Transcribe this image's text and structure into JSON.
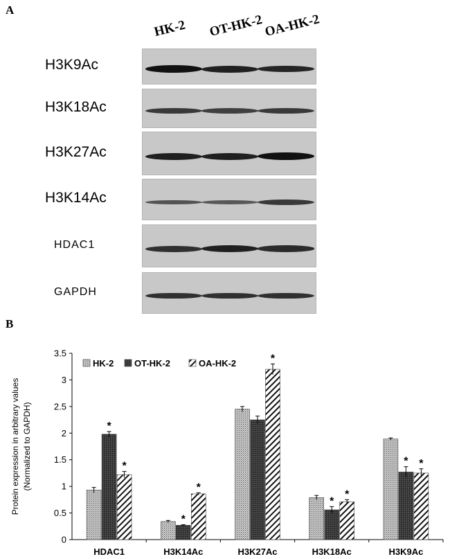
{
  "panel_a": {
    "letter": "A",
    "lanes": [
      "HK-2",
      "OT-HK-2",
      "OA-HK-2"
    ],
    "blots": [
      {
        "label": "H3K9Ac",
        "bands": [
          1.0,
          0.85,
          0.8
        ]
      },
      {
        "label": "H3K18Ac",
        "bands": [
          0.6,
          0.55,
          0.6
        ]
      },
      {
        "label": "H3K27Ac",
        "bands": [
          0.85,
          0.85,
          1.0
        ]
      },
      {
        "label": "H3K14Ac",
        "bands": [
          0.35,
          0.3,
          0.6
        ]
      },
      {
        "label": "HDAC1",
        "bands": [
          0.7,
          0.85,
          0.75
        ]
      },
      {
        "label": "GAPDH",
        "bands": [
          0.7,
          0.7,
          0.7
        ]
      }
    ]
  },
  "panel_b": {
    "letter": "B"
  },
  "chart_data": {
    "type": "bar",
    "title": "",
    "xlabel": "",
    "ylabel": "Protein expression in arbitrary values (Normalized to GAPDH)",
    "ylabel_lines": [
      "Protein expression in arbitrary values",
      "(Normalized to GAPDH)"
    ],
    "ylim": [
      0,
      3.5
    ],
    "yticks": [
      "0",
      "0.5",
      "1",
      "1.5",
      "2",
      "2.5",
      "3",
      "3.5"
    ],
    "legend_position": "top-left",
    "categories": [
      "HDAC1",
      "H3K14Ac",
      "H3K27Ac",
      "H3K18Ac",
      "H3K9Ac"
    ],
    "series": [
      {
        "name": "HK-2",
        "pattern": "dotted",
        "values": [
          0.93,
          0.34,
          2.45,
          0.79,
          1.89
        ],
        "errors": [
          0.05,
          0.02,
          0.05,
          0.04,
          0.02
        ],
        "significant": [
          false,
          false,
          false,
          false,
          false
        ]
      },
      {
        "name": "OT-HK-2",
        "pattern": "dark",
        "values": [
          1.98,
          0.27,
          2.25,
          0.56,
          1.27
        ],
        "errors": [
          0.05,
          0.01,
          0.07,
          0.06,
          0.1
        ],
        "significant": [
          true,
          true,
          false,
          true,
          true
        ]
      },
      {
        "name": "OA-HK-2",
        "pattern": "hatched",
        "values": [
          1.22,
          0.86,
          3.2,
          0.71,
          1.25
        ],
        "errors": [
          0.06,
          0.02,
          0.1,
          0.04,
          0.08
        ],
        "significant": [
          true,
          true,
          true,
          true,
          true
        ]
      }
    ],
    "significance_marker": "*"
  }
}
